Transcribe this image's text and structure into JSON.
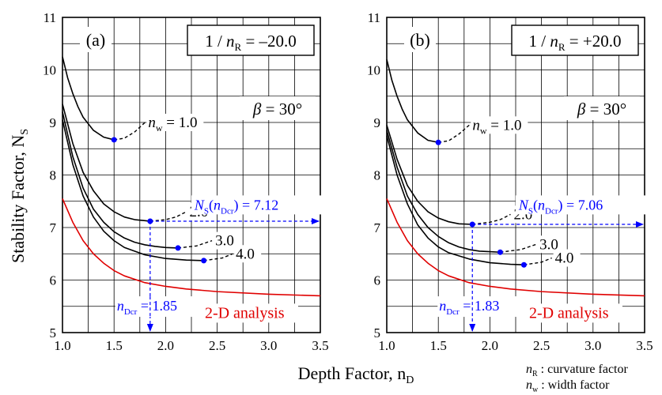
{
  "figure": {
    "y_axis_label": "Stability Factor, N",
    "y_axis_label_sub": "S",
    "x_axis_label": "Depth Factor, n",
    "x_axis_label_sub": "D",
    "legend_notes": [
      {
        "symbol": "n",
        "sub": "R",
        "text": " : curvature factor"
      },
      {
        "symbol": "n",
        "sub": "w",
        "text": " : width factor"
      }
    ]
  },
  "chart_data": [
    {
      "type": "line",
      "panel": "(a)",
      "xlim": [
        1.0,
        3.5
      ],
      "ylim": [
        5,
        11
      ],
      "x_ticks": [
        "1.0",
        "1.5",
        "2.0",
        "2.5",
        "3.0",
        "3.5"
      ],
      "y_ticks": [
        "5",
        "6",
        "7",
        "8",
        "9",
        "10",
        "11"
      ],
      "grid": true,
      "box_label": "1 / n",
      "box_label_sub": "R",
      "box_value": " = –20.0",
      "beta_label": "β = 30°",
      "series": [
        {
          "name": "n_w = 1.0",
          "label": "1.0",
          "color": "#000000",
          "x": [
            1.0,
            1.05,
            1.1,
            1.15,
            1.2,
            1.3,
            1.4,
            1.5
          ],
          "y": [
            10.25,
            9.85,
            9.55,
            9.3,
            9.1,
            8.85,
            8.72,
            8.67
          ],
          "ext_x": [
            1.5,
            1.6,
            1.7,
            1.8
          ],
          "ext_y": [
            8.67,
            8.7,
            8.82,
            9.0
          ],
          "min": [
            1.5,
            8.67
          ]
        },
        {
          "name": "n_w = 2.0",
          "label": "2.0",
          "color": "#000000",
          "x": [
            1.0,
            1.1,
            1.2,
            1.3,
            1.4,
            1.5,
            1.6,
            1.7,
            1.8,
            1.85
          ],
          "y": [
            9.35,
            8.6,
            8.05,
            7.7,
            7.45,
            7.3,
            7.2,
            7.15,
            7.13,
            7.12
          ],
          "ext_x": [
            1.85,
            2.0,
            2.1,
            2.2
          ],
          "ext_y": [
            7.12,
            7.15,
            7.2,
            7.3
          ],
          "min": [
            1.85,
            7.12
          ]
        },
        {
          "name": "n_w = 3.0",
          "label": "3.0",
          "color": "#000000",
          "x": [
            1.0,
            1.1,
            1.2,
            1.3,
            1.4,
            1.5,
            1.6,
            1.7,
            1.8,
            1.9,
            2.0,
            2.12
          ],
          "y": [
            9.2,
            8.35,
            7.75,
            7.35,
            7.1,
            6.92,
            6.8,
            6.72,
            6.67,
            6.64,
            6.62,
            6.61
          ],
          "ext_x": [
            2.12,
            2.3,
            2.45
          ],
          "ext_y": [
            6.61,
            6.65,
            6.75
          ],
          "min": [
            2.12,
            6.61
          ]
        },
        {
          "name": "n_w = 4.0",
          "label": "4.0",
          "color": "#000000",
          "x": [
            1.0,
            1.1,
            1.2,
            1.3,
            1.4,
            1.5,
            1.6,
            1.8,
            2.0,
            2.2,
            2.37
          ],
          "y": [
            9.05,
            8.2,
            7.6,
            7.2,
            6.93,
            6.75,
            6.62,
            6.48,
            6.41,
            6.38,
            6.37
          ],
          "ext_x": [
            2.37,
            2.55,
            2.65
          ],
          "ext_y": [
            6.37,
            6.42,
            6.5
          ],
          "min": [
            2.37,
            6.37
          ]
        },
        {
          "name": "2-D analysis",
          "label": "2-D analysis",
          "color": "#e00000",
          "x": [
            1.0,
            1.1,
            1.2,
            1.3,
            1.4,
            1.5,
            1.6,
            1.8,
            2.0,
            2.2,
            2.5,
            3.0,
            3.5
          ],
          "y": [
            7.55,
            7.1,
            6.75,
            6.5,
            6.32,
            6.18,
            6.08,
            5.95,
            5.88,
            5.83,
            5.78,
            5.73,
            5.7
          ]
        }
      ],
      "annotations": {
        "min_line_label_ns": "N",
        "min_line_label_ns_sub": "S",
        "min_line_label_mid": "(n",
        "min_line_label_dcr": "Dcr",
        "min_line_label_value": ") = 7.12",
        "ncr_label_n": "n",
        "ncr_label_sub": "Dcr",
        "ncr_label_value": " = 1.85",
        "critical_x": 1.85,
        "critical_y": 7.12,
        "annotation_color": "#0000ff"
      }
    },
    {
      "type": "line",
      "panel": "(b)",
      "xlim": [
        1.0,
        3.5
      ],
      "ylim": [
        5,
        11
      ],
      "x_ticks": [
        "1.0",
        "1.5",
        "2.0",
        "2.5",
        "3.0",
        "3.5"
      ],
      "y_ticks": [
        "5",
        "6",
        "7",
        "8",
        "9",
        "10",
        "11"
      ],
      "grid": true,
      "box_label": "1 / n",
      "box_label_sub": "R",
      "box_value": " = +20.0",
      "beta_label": "β = 30°",
      "series": [
        {
          "name": "n_w = 1.0",
          "label": "1.0",
          "color": "#000000",
          "x": [
            1.0,
            1.05,
            1.1,
            1.15,
            1.2,
            1.3,
            1.4,
            1.5
          ],
          "y": [
            10.2,
            9.8,
            9.5,
            9.25,
            9.05,
            8.8,
            8.66,
            8.62
          ],
          "ext_x": [
            1.5,
            1.6,
            1.7,
            1.8
          ],
          "ext_y": [
            8.62,
            8.65,
            8.78,
            8.95
          ],
          "min": [
            1.5,
            8.62
          ]
        },
        {
          "name": "n_w = 2.0",
          "label": "2.0",
          "color": "#000000",
          "x": [
            1.0,
            1.1,
            1.2,
            1.3,
            1.4,
            1.5,
            1.6,
            1.7,
            1.83
          ],
          "y": [
            8.95,
            8.3,
            7.8,
            7.5,
            7.3,
            7.18,
            7.11,
            7.07,
            7.06
          ],
          "ext_x": [
            1.83,
            2.0,
            2.1,
            2.2
          ],
          "ext_y": [
            7.06,
            7.1,
            7.15,
            7.25
          ],
          "min": [
            1.83,
            7.06
          ]
        },
        {
          "name": "n_w = 3.0",
          "label": "3.0",
          "color": "#000000",
          "x": [
            1.0,
            1.1,
            1.2,
            1.3,
            1.4,
            1.5,
            1.6,
            1.7,
            1.8,
            1.9,
            2.0,
            2.1
          ],
          "y": [
            8.85,
            8.15,
            7.6,
            7.25,
            7.0,
            6.83,
            6.71,
            6.63,
            6.58,
            6.55,
            6.54,
            6.53
          ],
          "ext_x": [
            2.1,
            2.3,
            2.45
          ],
          "ext_y": [
            6.53,
            6.58,
            6.68
          ],
          "min": [
            2.1,
            6.53
          ]
        },
        {
          "name": "n_w = 4.0",
          "label": "4.0",
          "color": "#000000",
          "x": [
            1.0,
            1.1,
            1.2,
            1.3,
            1.4,
            1.5,
            1.6,
            1.8,
            2.0,
            2.2,
            2.33
          ],
          "y": [
            8.75,
            8.0,
            7.45,
            7.05,
            6.8,
            6.63,
            6.52,
            6.4,
            6.33,
            6.3,
            6.29
          ],
          "ext_x": [
            2.33,
            2.5,
            2.6
          ],
          "ext_y": [
            6.29,
            6.34,
            6.42
          ],
          "min": [
            2.33,
            6.29
          ]
        },
        {
          "name": "2-D analysis",
          "label": "2-D analysis",
          "color": "#e00000",
          "x": [
            1.0,
            1.1,
            1.2,
            1.3,
            1.4,
            1.5,
            1.6,
            1.8,
            2.0,
            2.2,
            2.5,
            3.0,
            3.5
          ],
          "y": [
            7.55,
            7.1,
            6.75,
            6.5,
            6.32,
            6.18,
            6.08,
            5.95,
            5.88,
            5.83,
            5.78,
            5.73,
            5.7
          ]
        }
      ],
      "annotations": {
        "min_line_label_ns": "N",
        "min_line_label_ns_sub": "S",
        "min_line_label_mid": "(n",
        "min_line_label_dcr": "Dcr",
        "min_line_label_value": ") = 7.06",
        "ncr_label_n": "n",
        "ncr_label_sub": "Dcr",
        "ncr_label_value": " = 1.83",
        "critical_x": 1.83,
        "critical_y": 7.06,
        "annotation_color": "#0000ff"
      }
    }
  ]
}
